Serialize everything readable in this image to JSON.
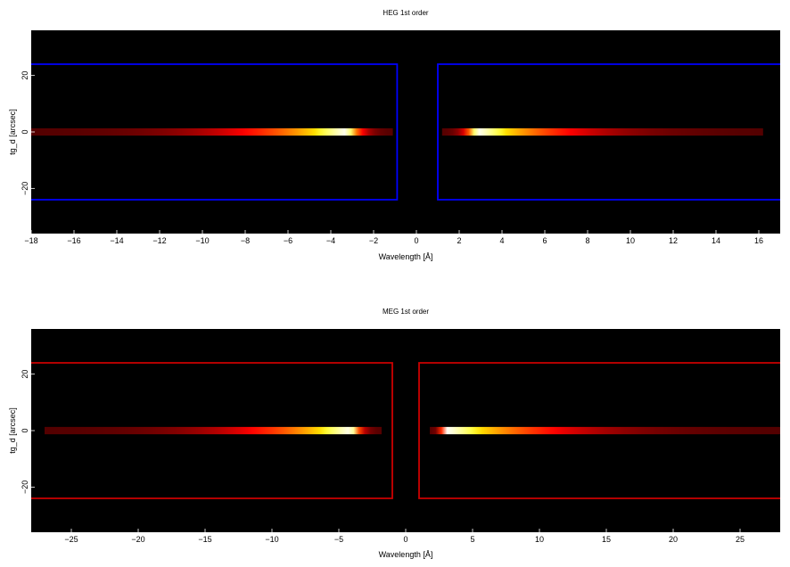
{
  "chart_data": [
    {
      "type": "heatmap",
      "title": "HEG 1st order",
      "xlabel": "Wavelength [Å]",
      "ylabel": "tg_d [arcsec]",
      "xlim": [
        -18,
        17
      ],
      "ylim": [
        -36,
        36
      ],
      "xticks": [
        -18,
        -16,
        -14,
        -12,
        -10,
        -8,
        -6,
        -4,
        -2,
        0,
        2,
        4,
        6,
        8,
        10,
        12,
        14,
        16
      ],
      "yticks": [
        -20,
        0,
        20
      ],
      "box_color": "#0000ff",
      "regions": [
        {
          "x": [
            -18,
            -0.9
          ],
          "y": [
            -24,
            24
          ]
        },
        {
          "x": [
            1.0,
            17
          ],
          "y": [
            -24,
            24
          ]
        }
      ],
      "streak": {
        "y": 0,
        "half_width": 1.3,
        "segments": [
          {
            "x": [
              -18,
              -1.1
            ],
            "peak_x": -3.2
          },
          {
            "x": [
              1.2,
              16.2
            ],
            "peak_x": 2.8
          }
        ]
      }
    },
    {
      "type": "heatmap",
      "title": "MEG 1st order",
      "xlabel": "Wavelength [Å]",
      "ylabel": "tg_d [arcsec]",
      "xlim": [
        -28,
        28
      ],
      "ylim": [
        -36,
        36
      ],
      "xticks": [
        -25,
        -20,
        -15,
        -10,
        -5,
        0,
        5,
        10,
        15,
        20,
        25
      ],
      "yticks": [
        -20,
        0,
        20
      ],
      "box_color": "#cc0000",
      "regions": [
        {
          "x": [
            -28,
            -1.0
          ],
          "y": [
            -24,
            24
          ]
        },
        {
          "x": [
            1.0,
            28
          ],
          "y": [
            -24,
            24
          ]
        }
      ],
      "streak": {
        "y": 0,
        "half_width": 1.3,
        "segments": [
          {
            "x": [
              -27,
              -1.8
            ],
            "peak_x": -4.0
          },
          {
            "x": [
              1.8,
              28
            ],
            "peak_x": 3.0
          }
        ]
      }
    }
  ]
}
